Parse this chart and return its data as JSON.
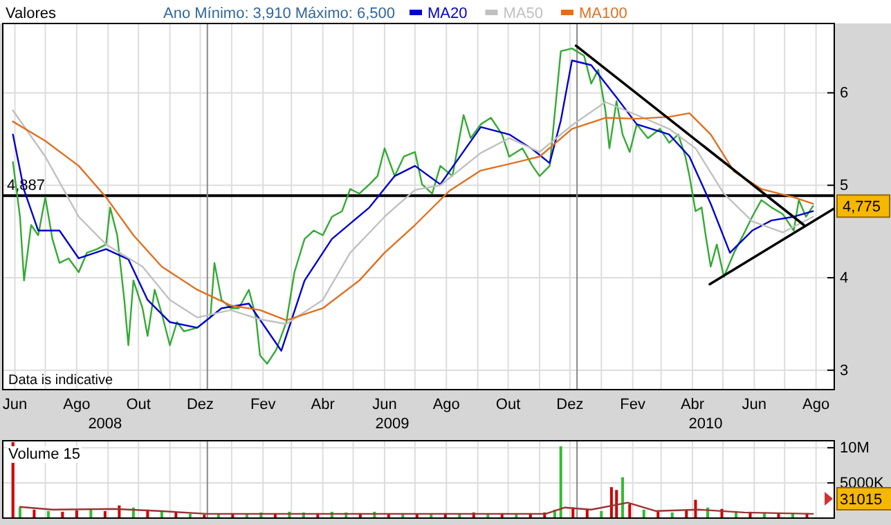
{
  "chart_data": [
    {
      "type": "line",
      "legend_title": "Valores",
      "subtitle": "Ano Mínimo: 3,910 Máximo: 6,500",
      "legend": "top",
      "grid": true,
      "xlim": [
        "2008-06-13",
        "2010-09-12"
      ],
      "ylim": [
        2.79,
        6.75
      ],
      "yticks": [
        3,
        4,
        5,
        6
      ],
      "xticks": [
        {
          "value": "2008-06-25",
          "label": "Jun"
        },
        {
          "value": "2008-07-25",
          "label": null
        },
        {
          "value": "2008-08-25",
          "label": "Ago"
        },
        {
          "value": "2008-09-25",
          "label": null
        },
        {
          "value": "2008-10-25",
          "label": "Out"
        },
        {
          "value": "2008-11-25",
          "label": null
        },
        {
          "value": "2008-12-25",
          "label": "Dez"
        },
        {
          "value": "2009-01-25",
          "label": null
        },
        {
          "value": "2009-02-25",
          "label": "Fev"
        },
        {
          "value": "2009-03-25",
          "label": null
        },
        {
          "value": "2009-04-25",
          "label": "Abr"
        },
        {
          "value": "2009-05-25",
          "label": null
        },
        {
          "value": "2009-06-25",
          "label": "Jun"
        },
        {
          "value": "2009-07-25",
          "label": null
        },
        {
          "value": "2009-08-25",
          "label": "Ago"
        },
        {
          "value": "2009-09-25",
          "label": null
        },
        {
          "value": "2009-10-25",
          "label": "Out"
        },
        {
          "value": "2009-11-25",
          "label": null
        },
        {
          "value": "2009-12-25",
          "label": "Dez"
        },
        {
          "value": "2010-01-25",
          "label": null
        },
        {
          "value": "2010-02-25",
          "label": "Fev"
        },
        {
          "value": "2010-03-25",
          "label": null
        },
        {
          "value": "2010-04-25",
          "label": "Abr"
        },
        {
          "value": "2010-05-25",
          "label": null
        },
        {
          "value": "2010-06-25",
          "label": "Jun"
        },
        {
          "value": "2010-07-25",
          "label": null
        },
        {
          "value": "2010-08-25",
          "label": "Ago"
        }
      ],
      "ref_lines": [
        {
          "axis": "y",
          "value": 4.887,
          "label": "4,887",
          "color": "#000000"
        },
        {
          "axis": "x",
          "value": "2009-01-01",
          "color": "#888888"
        },
        {
          "axis": "x",
          "value": "2010-01-01",
          "color": "#888888"
        }
      ],
      "annotations": [
        "Data is indicative",
        {
          "text": "4,775",
          "y": 4.775
        },
        "2008",
        "2009",
        "2010"
      ],
      "series": [
        {
          "color": "#33aa33",
          "x": [
            "2008-06-23",
            "2008-06-30",
            "2008-07-04",
            "2008-07-11",
            "2008-07-18",
            "2008-07-25",
            "2008-08-01",
            "2008-08-08",
            "2008-08-17",
            "2008-08-27",
            "2008-09-04",
            "2008-09-14",
            "2008-09-23",
            "2008-09-27",
            "2008-10-04",
            "2008-10-11",
            "2008-10-15",
            "2008-10-20",
            "2008-10-29",
            "2008-11-03",
            "2008-11-10",
            "2008-11-17",
            "2008-11-25",
            "2008-12-02",
            "2008-12-09",
            "2008-12-22",
            "2009-01-04",
            "2009-01-08",
            "2009-01-15",
            "2009-01-24",
            "2009-02-01",
            "2009-02-11",
            "2009-02-18",
            "2009-02-22",
            "2009-03-01",
            "2009-03-10",
            "2009-03-20",
            "2009-03-28",
            "2009-04-07",
            "2009-04-16",
            "2009-04-25",
            "2009-05-04",
            "2009-05-14",
            "2009-05-22",
            "2009-05-31",
            "2009-06-10",
            "2009-06-18",
            "2009-06-25",
            "2009-07-05",
            "2009-07-14",
            "2009-07-25",
            "2009-08-01",
            "2009-08-11",
            "2009-08-19",
            "2009-08-31",
            "2009-09-11",
            "2009-09-18",
            "2009-09-28",
            "2009-10-08",
            "2009-10-19",
            "2009-10-26",
            "2009-11-08",
            "2009-11-18",
            "2009-11-25",
            "2009-12-05",
            "2009-12-12",
            "2009-12-16",
            "2009-12-27",
            "2010-01-08",
            "2010-01-15",
            "2010-01-22",
            "2010-01-29",
            "2010-02-02",
            "2010-02-09",
            "2010-02-15",
            "2010-02-22",
            "2010-03-01",
            "2010-03-12",
            "2010-03-24",
            "2010-04-02",
            "2010-04-11",
            "2010-04-18",
            "2010-04-22",
            "2010-04-28",
            "2010-05-04",
            "2010-05-08",
            "2010-05-13",
            "2010-05-19",
            "2010-05-26",
            "2010-06-05",
            "2010-06-14",
            "2010-06-23",
            "2010-07-02",
            "2010-07-12",
            "2010-07-23",
            "2010-08-03",
            "2010-08-08",
            "2010-08-15",
            "2010-08-22"
          ],
          "values": [
            5.25,
            4.66,
            3.97,
            4.57,
            4.46,
            4.87,
            4.42,
            4.16,
            4.21,
            4.06,
            4.27,
            4.31,
            4.36,
            4.76,
            4.46,
            3.76,
            3.27,
            3.97,
            3.67,
            3.37,
            3.87,
            3.61,
            3.27,
            3.52,
            3.42,
            3.46,
            3.57,
            4.16,
            3.76,
            3.67,
            3.67,
            3.87,
            3.57,
            3.16,
            3.07,
            3.22,
            3.52,
            4.06,
            4.42,
            4.51,
            4.46,
            4.66,
            4.72,
            4.96,
            4.91,
            5.01,
            5.1,
            5.4,
            5.1,
            5.31,
            5.36,
            5.01,
            4.91,
            5.21,
            5.1,
            5.76,
            5.51,
            5.66,
            5.73,
            5.55,
            5.31,
            5.4,
            5.21,
            5.1,
            5.21,
            6.0,
            6.45,
            6.48,
            6.4,
            6.1,
            6.25,
            5.81,
            5.4,
            5.91,
            5.55,
            5.36,
            5.66,
            5.51,
            5.61,
            5.46,
            5.55,
            5.31,
            5.1,
            4.72,
            4.76,
            4.46,
            4.12,
            4.36,
            4.01,
            4.27,
            4.46,
            4.66,
            4.84,
            4.76,
            4.69,
            4.51,
            4.84,
            4.66,
            4.775
          ]
        },
        {
          "name": "MA20",
          "color": "#0000cc",
          "x": [
            "2008-06-23",
            "2008-07-04",
            "2008-07-18",
            "2008-08-08",
            "2008-08-27",
            "2008-09-23",
            "2008-10-15",
            "2008-11-03",
            "2008-11-25",
            "2008-12-22",
            "2009-01-15",
            "2009-02-11",
            "2009-03-15",
            "2009-04-07",
            "2009-05-04",
            "2009-06-10",
            "2009-07-05",
            "2009-07-25",
            "2009-08-19",
            "2009-09-28",
            "2009-10-26",
            "2009-11-18",
            "2009-12-05",
            "2009-12-16",
            "2009-12-27",
            "2010-01-15",
            "2010-02-09",
            "2010-03-01",
            "2010-04-02",
            "2010-04-22",
            "2010-05-13",
            "2010-06-01",
            "2010-06-23",
            "2010-07-12",
            "2010-08-03",
            "2010-08-22"
          ],
          "values": [
            5.55,
            4.95,
            4.51,
            4.51,
            4.21,
            4.31,
            4.2,
            3.76,
            3.52,
            3.46,
            3.67,
            3.72,
            3.21,
            3.97,
            4.42,
            4.76,
            5.1,
            5.21,
            5.01,
            5.63,
            5.55,
            5.39,
            5.24,
            5.7,
            6.35,
            6.3,
            5.95,
            5.66,
            5.55,
            5.31,
            4.8,
            4.27,
            4.51,
            4.62,
            4.66,
            4.72
          ]
        },
        {
          "name": "MA50",
          "color": "#c0c0c0",
          "x": [
            "2008-06-23",
            "2008-07-25",
            "2008-08-27",
            "2008-09-23",
            "2008-10-29",
            "2008-11-25",
            "2008-12-22",
            "2009-01-24",
            "2009-02-22",
            "2009-03-20",
            "2009-04-25",
            "2009-05-22",
            "2009-06-25",
            "2009-07-25",
            "2009-08-19",
            "2009-09-28",
            "2009-10-26",
            "2009-11-25",
            "2009-12-27",
            "2010-01-29",
            "2010-03-01",
            "2010-04-02",
            "2010-04-28",
            "2010-05-26",
            "2010-06-23",
            "2010-07-23",
            "2010-08-22"
          ],
          "values": [
            5.81,
            5.31,
            4.66,
            4.36,
            4.12,
            3.76,
            3.57,
            3.65,
            3.55,
            3.5,
            3.76,
            4.27,
            4.66,
            4.95,
            5.0,
            5.35,
            5.51,
            5.36,
            5.65,
            5.9,
            5.76,
            5.61,
            5.4,
            4.91,
            4.61,
            4.49,
            4.66
          ]
        },
        {
          "name": "MA100",
          "color": "#e07020",
          "x": [
            "2008-06-23",
            "2008-07-25",
            "2008-08-27",
            "2008-09-23",
            "2008-10-20",
            "2008-11-17",
            "2008-12-22",
            "2009-01-24",
            "2009-02-22",
            "2009-03-20",
            "2009-04-25",
            "2009-05-31",
            "2009-06-25",
            "2009-07-25",
            "2009-08-28",
            "2009-09-28",
            "2009-10-26",
            "2009-11-25",
            "2009-12-27",
            "2010-01-29",
            "2010-03-01",
            "2010-04-02",
            "2010-04-22",
            "2010-05-13",
            "2010-06-05",
            "2010-07-02",
            "2010-08-03",
            "2010-08-22"
          ],
          "values": [
            5.69,
            5.48,
            5.21,
            4.87,
            4.46,
            4.12,
            3.87,
            3.7,
            3.65,
            3.54,
            3.67,
            3.97,
            4.27,
            4.57,
            4.94,
            5.16,
            5.23,
            5.31,
            5.61,
            5.73,
            5.72,
            5.74,
            5.78,
            5.55,
            5.15,
            4.96,
            4.87,
            4.8
          ]
        },
        {
          "color": "#000000",
          "x": [
            "2009-12-31",
            "2010-08-13"
          ],
          "values": [
            6.51,
            4.57
          ]
        },
        {
          "color": "#000000",
          "x": [
            "2010-05-12",
            "2010-09-12"
          ],
          "values": [
            3.93,
            4.75
          ]
        }
      ]
    },
    {
      "type": "bar",
      "title": "Volume 15",
      "tick_labels": "y",
      "grid": true,
      "xlim": [
        "2008-06-13",
        "2010-09-12"
      ],
      "ylim": [
        0,
        11000000
      ],
      "yticks": [
        {
          "value": 5000000,
          "label": "5000K"
        },
        {
          "value": 10000000,
          "label": "10M"
        }
      ],
      "ref_lines": [
        {
          "axis": "x",
          "value": "2009-01-01",
          "color": "#888888"
        },
        {
          "axis": "x",
          "value": "2010-01-01",
          "color": "#888888"
        }
      ],
      "annotations": [
        "31015"
      ],
      "series": [
        {
          "x": [
            "2008-06-23",
            "2008-06-30",
            "2008-07-14",
            "2008-07-28",
            "2008-08-11",
            "2008-08-25",
            "2008-09-08",
            "2008-09-22",
            "2008-10-06",
            "2008-10-20",
            "2008-11-03",
            "2008-11-17",
            "2008-12-01",
            "2008-12-15",
            "2008-12-29",
            "2009-01-12",
            "2009-01-26",
            "2009-02-09",
            "2009-02-23",
            "2009-03-09",
            "2009-03-23",
            "2009-04-06",
            "2009-04-20",
            "2009-05-04",
            "2009-05-18",
            "2009-06-01",
            "2009-06-15",
            "2009-06-29",
            "2009-07-13",
            "2009-07-27",
            "2009-08-10",
            "2009-08-24",
            "2009-09-07",
            "2009-09-21",
            "2009-10-05",
            "2009-10-19",
            "2009-11-02",
            "2009-11-16",
            "2009-11-30",
            "2009-12-10",
            "2009-12-16",
            "2009-12-28",
            "2010-01-11",
            "2010-01-25",
            "2010-02-04",
            "2010-02-09",
            "2010-02-15",
            "2010-02-22",
            "2010-03-08",
            "2010-03-22",
            "2010-04-05",
            "2010-04-19",
            "2010-04-28",
            "2010-05-10",
            "2010-05-24",
            "2010-06-07",
            "2010-06-21",
            "2010-07-05",
            "2010-07-19",
            "2010-08-02",
            "2010-08-16"
          ],
          "values": [
            10800000,
            1500000,
            1200000,
            1000000,
            900000,
            1100000,
            1300000,
            1000000,
            1800000,
            1500000,
            1200000,
            900000,
            800000,
            600000,
            500000,
            600000,
            700000,
            600000,
            800000,
            700000,
            900000,
            800000,
            700000,
            900000,
            800000,
            700000,
            900000,
            600000,
            700000,
            600000,
            500000,
            700000,
            600000,
            800000,
            600000,
            700000,
            600000,
            700000,
            800000,
            1200000,
            10200000,
            1500000,
            1200000,
            1000000,
            4400000,
            4000000,
            5800000,
            2000000,
            1200000,
            900000,
            800000,
            1100000,
            2600000,
            1500000,
            1300000,
            1000000,
            900000,
            800000,
            700000,
            600000,
            700000
          ],
          "colors": [
            "#cc0000",
            "#33bb33",
            "#cc0000",
            "#33bb33",
            "#cc0000",
            "#cc0000",
            "#33bb33",
            "#cc0000",
            "#cc0000",
            "#33bb33",
            "#cc0000",
            "#33bb33",
            "#cc0000",
            "#33bb33",
            "#cc0000",
            "#33bb33",
            "#cc0000",
            "#33bb33",
            "#33bb33",
            "#cc0000",
            "#33bb33",
            "#33bb33",
            "#cc0000",
            "#33bb33",
            "#33bb33",
            "#cc0000",
            "#33bb33",
            "#cc0000",
            "#33bb33",
            "#cc0000",
            "#33bb33",
            "#cc0000",
            "#33bb33",
            "#cc0000",
            "#33bb33",
            "#cc0000",
            "#33bb33",
            "#cc0000",
            "#cc0000",
            "#33bb33",
            "#33bb33",
            "#cc0000",
            "#cc0000",
            "#33bb33",
            "#cc0000",
            "#cc0000",
            "#33bb33",
            "#cc0000",
            "#33bb33",
            "#cc0000",
            "#33bb33",
            "#cc0000",
            "#cc0000",
            "#33bb33",
            "#cc0000",
            "#33bb33",
            "#cc0000",
            "#33bb33",
            "#cc0000",
            "#33bb33",
            "#cc0000"
          ]
        },
        {
          "type": "line",
          "color": "#993333",
          "x": [
            "2008-06-30",
            "2008-08-01",
            "2008-10-01",
            "2008-11-15",
            "2009-01-01",
            "2009-06-01",
            "2009-12-01",
            "2009-12-20",
            "2010-01-15",
            "2010-02-20",
            "2010-03-20",
            "2010-05-01",
            "2010-06-15",
            "2010-08-22"
          ],
          "values": [
            1600000,
            1200000,
            1300000,
            1000000,
            600000,
            600000,
            600000,
            1500000,
            1200000,
            2200000,
            1000000,
            1200000,
            800000,
            600000
          ]
        }
      ]
    }
  ]
}
